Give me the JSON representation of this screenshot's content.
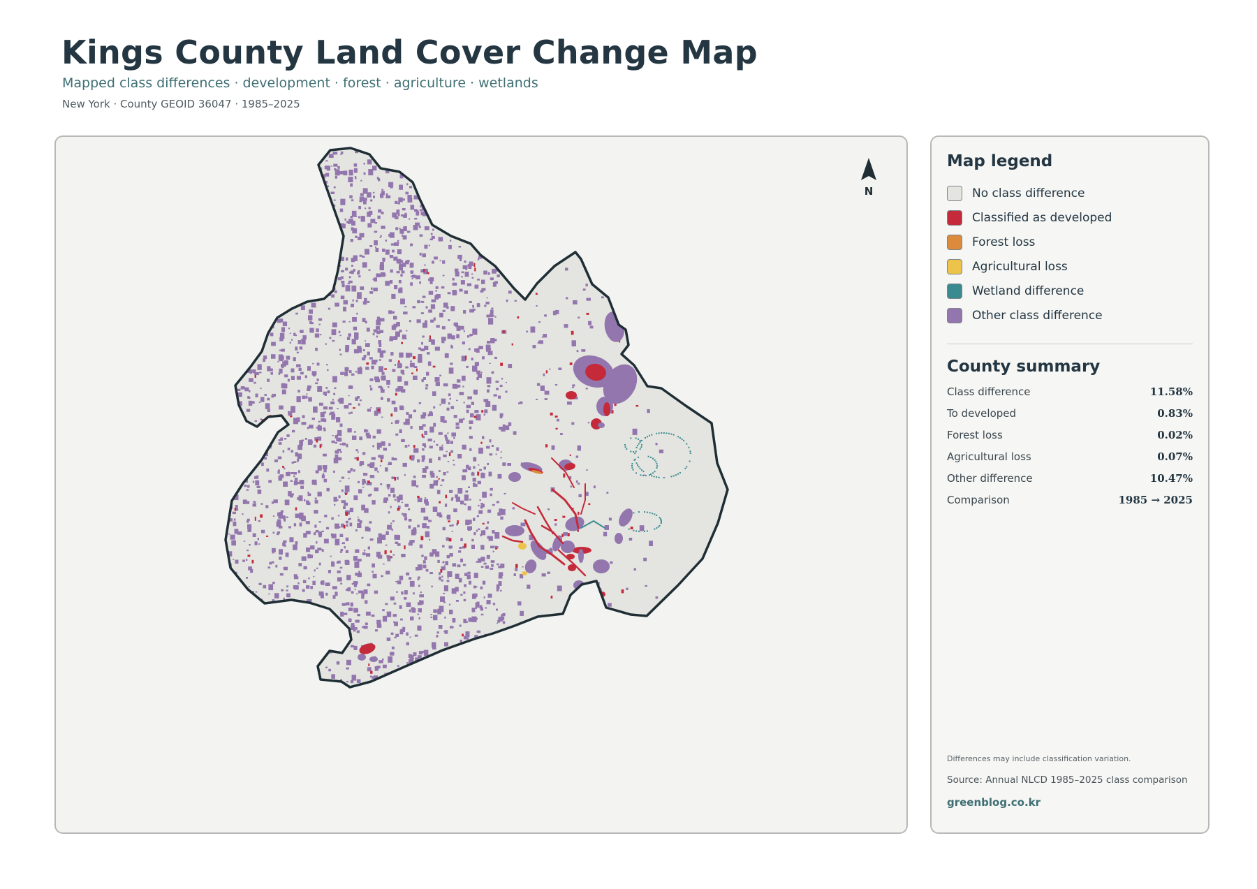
{
  "header": {
    "title": "Kings County Land Cover Change Map",
    "subtitle": "Mapped class differences · development · forest · agriculture · wetlands",
    "meta": "New York · County GEOID 36047 · 1985–2025"
  },
  "map": {
    "north_label": "N",
    "colors": {
      "no_change": "#e4e5e0",
      "developed": "#c42a3a",
      "forest_loss": "#dc8a3c",
      "agricultural_loss": "#eec34a",
      "wetland": "#3a8b8f",
      "other": "#9376ad",
      "outline": "#1f2e35"
    }
  },
  "legend": {
    "title": "Map legend",
    "items": [
      {
        "label": "No class difference",
        "color": "#e4e5e0"
      },
      {
        "label": "Classified as developed",
        "color": "#c42a3a"
      },
      {
        "label": "Forest loss",
        "color": "#dc8a3c"
      },
      {
        "label": "Agricultural loss",
        "color": "#eec34a"
      },
      {
        "label": "Wetland difference",
        "color": "#3a8b8f"
      },
      {
        "label": "Other class difference",
        "color": "#9376ad"
      }
    ]
  },
  "summary": {
    "title": "County summary",
    "rows": [
      {
        "label": "Class difference",
        "value": "11.58%"
      },
      {
        "label": "To developed",
        "value": "0.83%"
      },
      {
        "label": "Forest loss",
        "value": "0.02%"
      },
      {
        "label": "Agricultural loss",
        "value": "0.07%"
      },
      {
        "label": "Other difference",
        "value": "10.47%"
      },
      {
        "label": "Comparison",
        "value": "1985 → 2025"
      }
    ]
  },
  "footer": {
    "note": "Differences may include classification variation.",
    "source": "Source: Annual NLCD 1985–2025 class comparison",
    "site": "greenblog.co.kr"
  }
}
